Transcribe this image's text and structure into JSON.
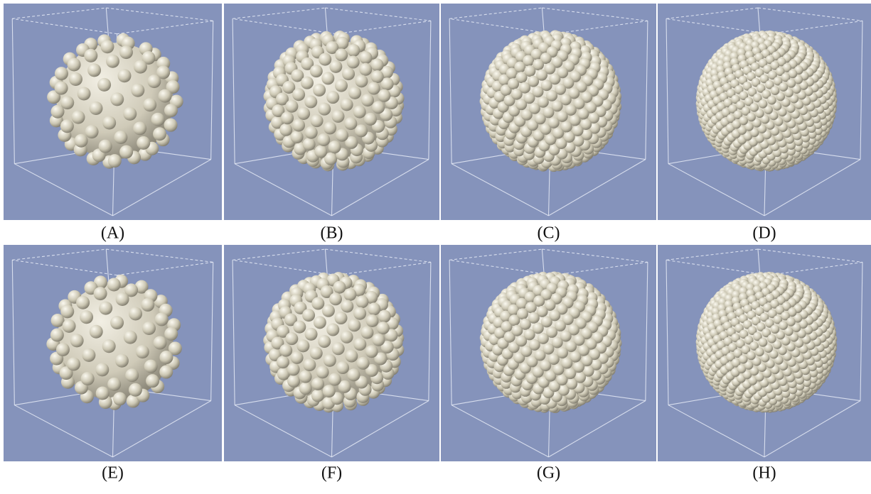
{
  "panels": [
    {
      "label": "(A)"
    },
    {
      "label": "(B)"
    },
    {
      "label": "(C)"
    },
    {
      "label": "(D)"
    },
    {
      "label": "(E)"
    },
    {
      "label": "(F)"
    },
    {
      "label": "(G)"
    },
    {
      "label": "(H)"
    }
  ]
}
